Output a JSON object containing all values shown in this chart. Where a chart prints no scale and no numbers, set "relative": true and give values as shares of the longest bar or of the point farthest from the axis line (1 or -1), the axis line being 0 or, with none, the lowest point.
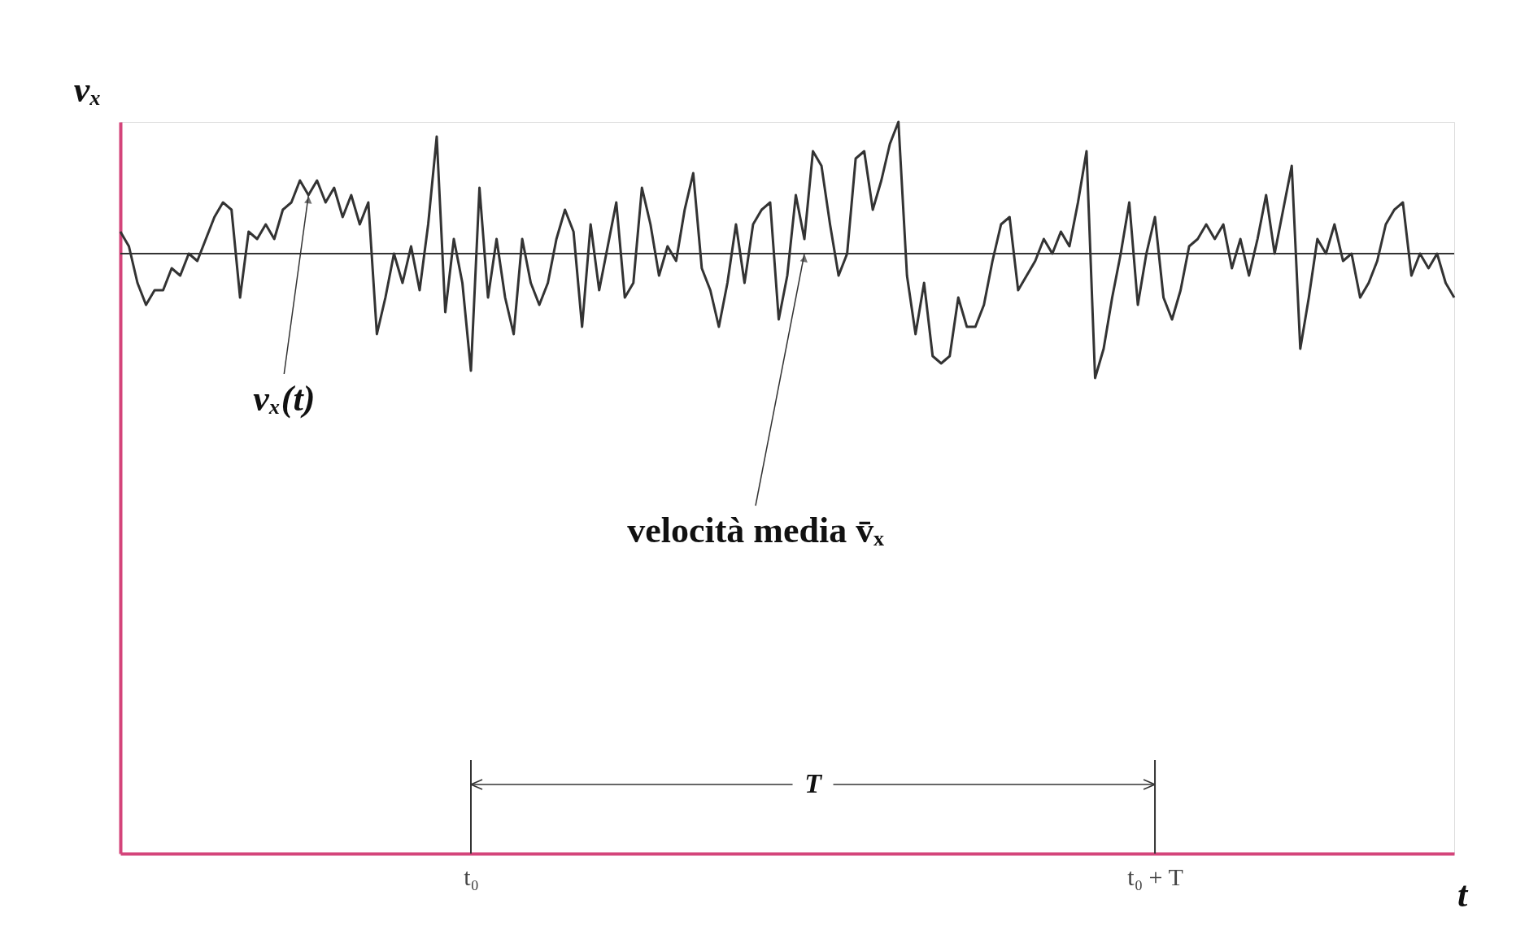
{
  "chart_data": {
    "type": "line",
    "relative": true,
    "xlabel": "t",
    "ylabel": "vₓ",
    "categories": [
      null,
      null,
      null,
      null,
      null,
      null,
      null,
      null,
      null,
      null,
      null,
      null,
      null,
      null,
      null,
      null,
      null,
      null,
      null,
      null,
      null,
      null,
      null,
      null,
      null,
      null,
      null,
      null,
      null,
      null,
      null,
      null,
      null,
      null,
      null,
      null,
      null,
      null,
      null,
      null,
      null,
      "t₀",
      null,
      null,
      null,
      null,
      null,
      null,
      null,
      null,
      null,
      null,
      null,
      null,
      null,
      null,
      null,
      null,
      null,
      null,
      null,
      null,
      null,
      null,
      null,
      null,
      null,
      null,
      null,
      null,
      null,
      null,
      null,
      null,
      null,
      null,
      null,
      null,
      null,
      null,
      null,
      null,
      null,
      null,
      null,
      null,
      null,
      null,
      null,
      null,
      null,
      null,
      null,
      null,
      null,
      null,
      null,
      null,
      null,
      null,
      null,
      null,
      null,
      null,
      null,
      null,
      null,
      null,
      null,
      null,
      null,
      null,
      null,
      null,
      null,
      null,
      null,
      null,
      null,
      null,
      null,
      "t₀ + T",
      null,
      null,
      null,
      null,
      null,
      null,
      null,
      null,
      null,
      null,
      null,
      null,
      null,
      null,
      null,
      null,
      null,
      null,
      null,
      null,
      null,
      null,
      null,
      null,
      null,
      null,
      null,
      null,
      null,
      null,
      null,
      null,
      null,
      null,
      null
    ],
    "grid": false,
    "marker": "none",
    "line_style": "solid",
    "series": [
      {
        "color": "#333333",
        "values": [
          0.85,
          0.83,
          0.78,
          0.75,
          0.77,
          0.77,
          0.8,
          0.79,
          0.82,
          0.81,
          0.84,
          0.87,
          0.89,
          0.88,
          0.76,
          0.85,
          0.84,
          0.86,
          0.84,
          0.88,
          0.89,
          0.92,
          0.9,
          0.92,
          0.89,
          0.91,
          0.87,
          0.9,
          0.86,
          0.89,
          0.71,
          0.76,
          0.82,
          0.78,
          0.83,
          0.77,
          0.86,
          0.98,
          0.74,
          0.84,
          0.78,
          0.66,
          0.91,
          0.76,
          0.84,
          0.76,
          0.71,
          0.84,
          0.78,
          0.75,
          0.78,
          0.84,
          0.88,
          0.85,
          0.72,
          0.86,
          0.77,
          0.83,
          0.89,
          0.76,
          0.78,
          0.91,
          0.86,
          0.79,
          0.83,
          0.81,
          0.88,
          0.93,
          0.8,
          0.77,
          0.72,
          0.78,
          0.86,
          0.78,
          0.86,
          0.88,
          0.89,
          0.73,
          0.79,
          0.9,
          0.84,
          0.96,
          0.94,
          0.86,
          0.79,
          0.82,
          0.95,
          0.96,
          0.88,
          0.92,
          0.97,
          1,
          0.79,
          0.71,
          0.78,
          0.68,
          0.67,
          0.68,
          0.76,
          0.72,
          0.72,
          0.75,
          0.81,
          0.86,
          0.87,
          0.77,
          0.79,
          0.81,
          0.84,
          0.82,
          0.85,
          0.83,
          0.89,
          0.96,
          0.65,
          0.69,
          0.76,
          0.82,
          0.89,
          0.75,
          0.82,
          0.87,
          0.76,
          0.73,
          0.77,
          0.83,
          0.84,
          0.86,
          0.84,
          0.86,
          0.8,
          0.84,
          0.79,
          0.84,
          0.9,
          0.82,
          0.88,
          0.94,
          0.69,
          0.76,
          0.84,
          0.82,
          0.86,
          0.81,
          0.82,
          0.76,
          0.78,
          0.81,
          0.86,
          0.88,
          0.89,
          0.79,
          0.82,
          0.8,
          0.82,
          0.78,
          0.76
        ]
      }
    ],
    "ref_lines": [
      {
        "axis": "y",
        "value": 0.82,
        "color": "#333333"
      },
      {
        "axis": "x",
        "value": "t₀",
        "color": "#333333"
      },
      {
        "axis": "x",
        "value": "t₀ + T",
        "color": "#333333"
      }
    ],
    "annotations": [
      "vₓ(t)",
      "velocità media v̄ₓ",
      "T"
    ]
  }
}
